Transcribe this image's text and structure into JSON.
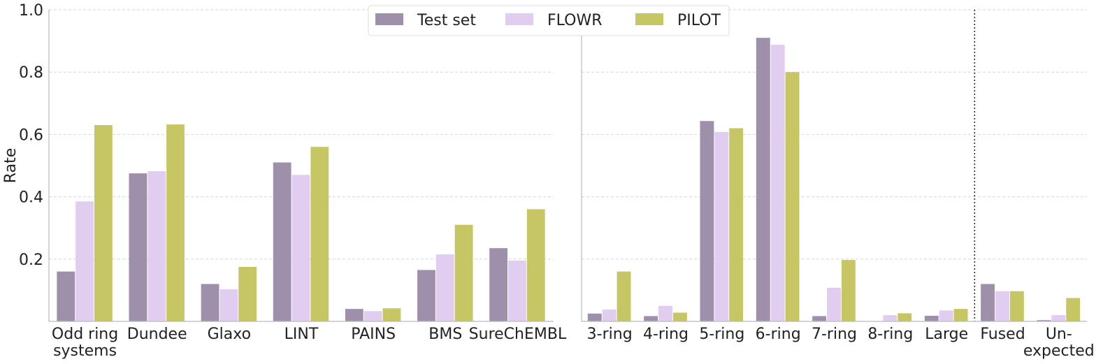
{
  "chart_data": [
    {
      "type": "bar",
      "panel": "left",
      "categories": [
        "Odd ring\nsystems",
        "Dundee",
        "Glaxo",
        "LINT",
        "PAINS",
        "BMS",
        "SureChEMBL"
      ],
      "series": [
        {
          "name": "Test set",
          "values": [
            0.16,
            0.475,
            0.12,
            0.51,
            0.04,
            0.165,
            0.235
          ]
        },
        {
          "name": "FLOWR",
          "values": [
            0.385,
            0.482,
            0.103,
            0.47,
            0.033,
            0.215,
            0.195
          ]
        },
        {
          "name": "PILOT",
          "values": [
            0.63,
            0.632,
            0.175,
            0.56,
            0.042,
            0.31,
            0.36
          ]
        }
      ],
      "ylabel": "Rate",
      "ylim": [
        0,
        1.0
      ],
      "yticks": [
        "0.2",
        "0.4",
        "0.6",
        "0.8",
        "1.0"
      ],
      "grid": true,
      "legend": "top-center"
    },
    {
      "type": "bar",
      "panel": "right",
      "categories": [
        "3-ring",
        "4-ring",
        "5-ring",
        "6-ring",
        "7-ring",
        "8-ring",
        "Large",
        "Fused",
        "Un-\nexpected"
      ],
      "series": [
        {
          "name": "Test set",
          "values": [
            0.025,
            0.017,
            0.643,
            0.91,
            0.017,
            0.0,
            0.018,
            0.12,
            0.004
          ]
        },
        {
          "name": "FLOWR",
          "values": [
            0.038,
            0.05,
            0.608,
            0.888,
            0.108,
            0.02,
            0.035,
            0.097,
            0.02
          ]
        },
        {
          "name": "PILOT",
          "values": [
            0.16,
            0.028,
            0.62,
            0.8,
            0.197,
            0.026,
            0.04,
            0.097,
            0.075
          ]
        }
      ],
      "ylim": [
        0,
        1.0
      ],
      "grid": true,
      "separator_after_index": 6
    }
  ],
  "legend": {
    "items": [
      {
        "label": "Test set",
        "color": "#9e8fab"
      },
      {
        "label": "FLOWR",
        "color": "#e0cdf0"
      },
      {
        "label": "PILOT",
        "color": "#c7c665"
      }
    ]
  }
}
